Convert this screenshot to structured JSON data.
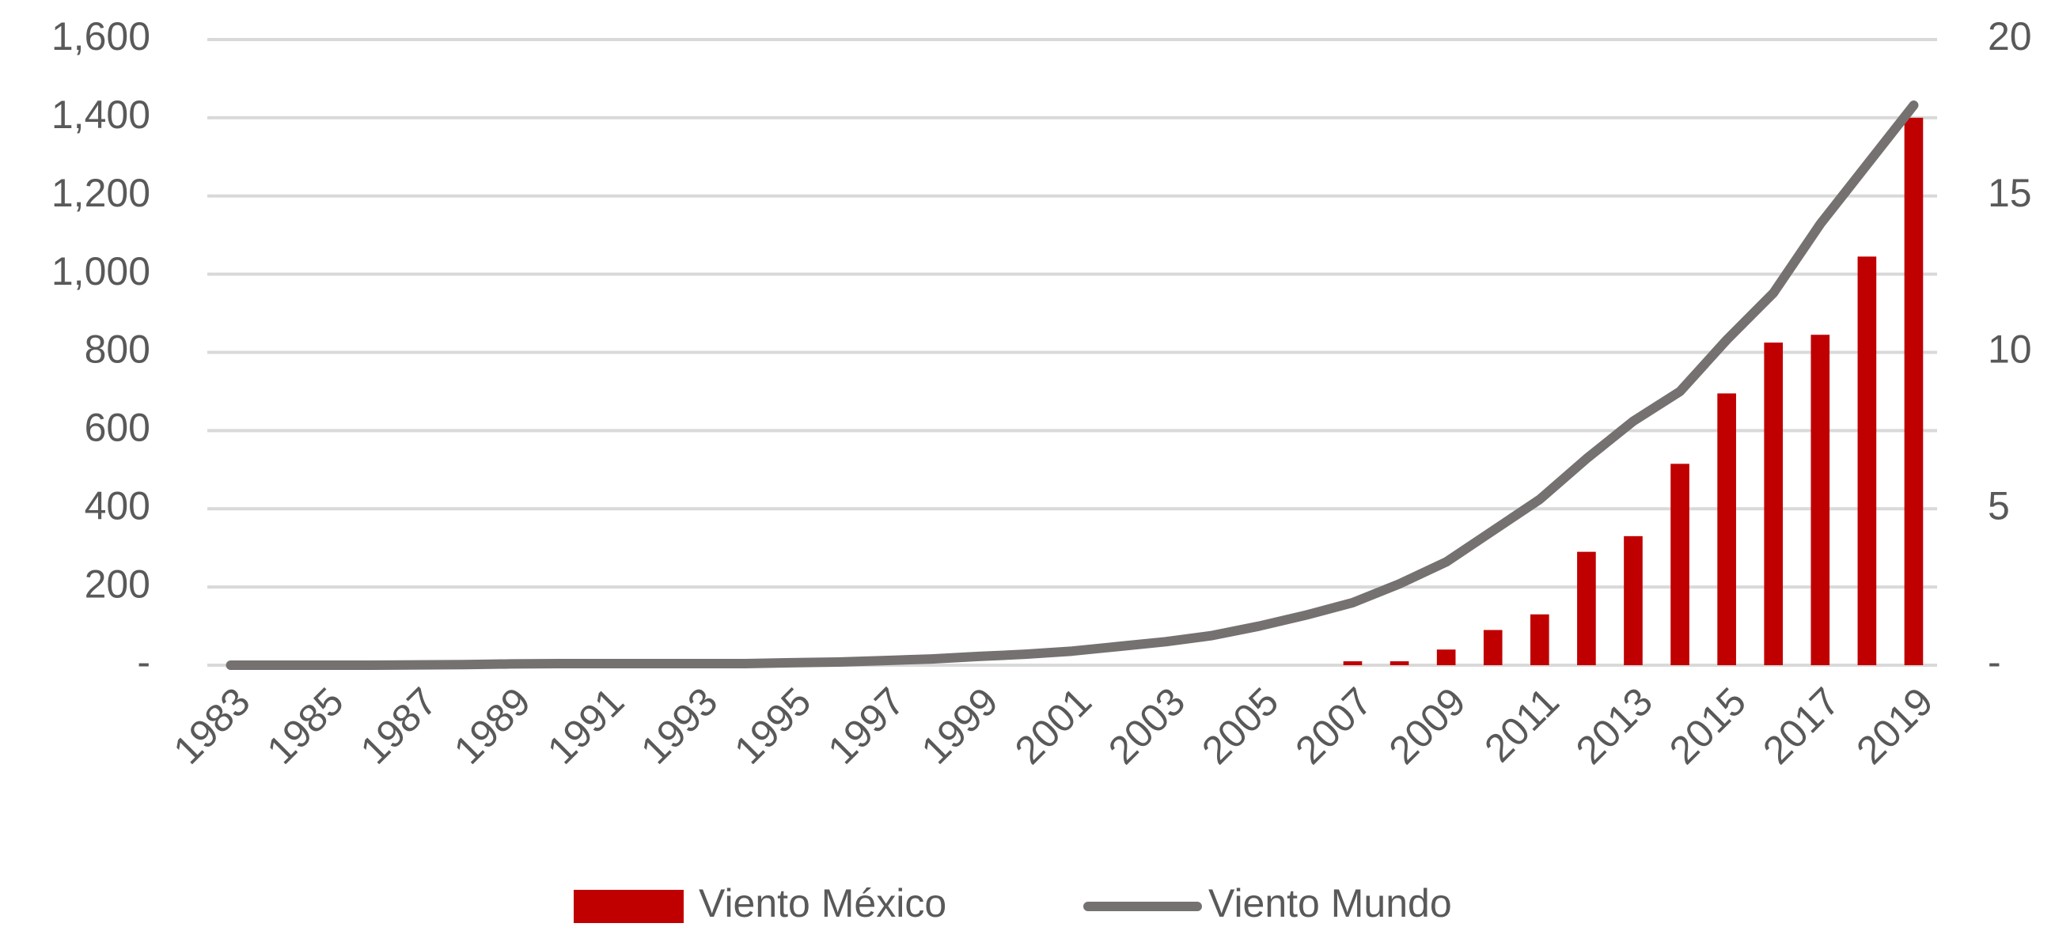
{
  "chart_data": {
    "type": "bar",
    "categories": [
      "1983",
      null,
      "1985",
      null,
      "1987",
      null,
      "1989",
      null,
      "1991",
      null,
      "1993",
      null,
      "1995",
      null,
      "1997",
      null,
      "1999",
      null,
      "2001",
      null,
      "2003",
      null,
      "2005",
      null,
      "2007",
      null,
      "2009",
      null,
      "2011",
      null,
      "2013",
      null,
      "2015",
      null,
      "2017",
      null,
      "2019"
    ],
    "series": [
      {
        "name": "Viento México",
        "type": "bar",
        "color": "#c00000",
        "values": [
          0,
          0,
          0,
          0,
          0,
          0,
          0,
          0,
          0,
          0,
          0,
          0,
          0,
          0,
          0,
          0,
          0,
          0,
          0,
          0,
          0,
          0,
          0,
          0,
          10,
          10,
          40,
          90,
          130,
          290,
          330,
          515,
          695,
          825,
          845,
          1045,
          1400
        ]
      },
      {
        "name": "Viento Mundo",
        "type": "line",
        "axis": "y2",
        "color": "#767171",
        "values": [
          0,
          0,
          0,
          0,
          0.01,
          0.02,
          0.04,
          0.05,
          0.05,
          0.05,
          0.05,
          0.05,
          0.08,
          0.1,
          0.15,
          0.2,
          0.28,
          0.35,
          0.45,
          0.6,
          0.75,
          0.95,
          1.25,
          1.6,
          2.0,
          2.6,
          3.3,
          4.3,
          5.3,
          6.6,
          7.8,
          8.75,
          10.4,
          11.9,
          14.1,
          16.0,
          17.9
        ]
      }
    ],
    "ylim": [
      0,
      1600
    ],
    "yticks": [
      {
        "value": 0,
        "label": "-"
      },
      200,
      400,
      600,
      800,
      {
        "value": 1000,
        "label": "1,000"
      },
      {
        "value": 1200,
        "label": "1,200"
      },
      {
        "value": 1400,
        "label": "1,400"
      },
      {
        "value": 1600,
        "label": "1,600"
      }
    ],
    "y2lim": [
      0,
      20
    ],
    "y2ticks": [
      {
        "value": 0,
        "label": "-"
      },
      5,
      10,
      15,
      20
    ],
    "grid": true,
    "legend": "bottom"
  }
}
